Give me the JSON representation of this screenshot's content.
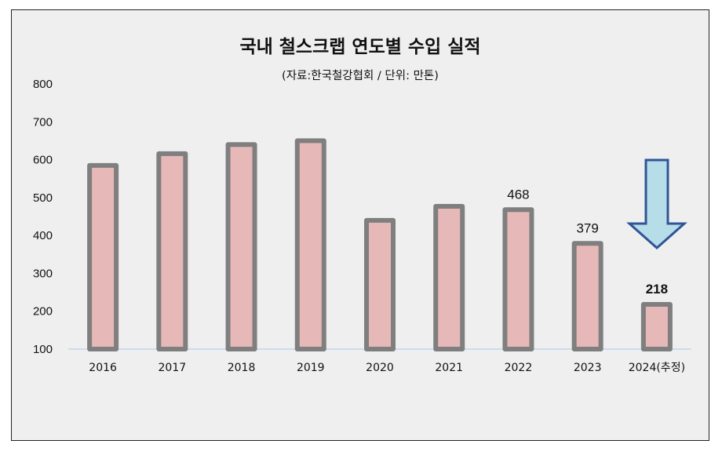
{
  "chart_data": {
    "type": "bar",
    "title": "국내 철스크랩 연도별 수입 실적",
    "subtitle": "(자료:한국철강협회 / 단위: 만톤)",
    "categories": [
      "2016",
      "2017",
      "2018",
      "2019",
      "2020",
      "2021",
      "2022",
      "2023",
      "2024(추정)"
    ],
    "values": [
      585,
      616,
      640,
      650,
      440,
      477,
      468,
      379,
      218
    ],
    "data_labels": [
      "",
      "",
      "",
      "",
      "",
      "",
      "468",
      "379",
      "218"
    ],
    "yticks": [
      "100",
      "200",
      "300",
      "400",
      "500",
      "600",
      "700",
      "800"
    ],
    "ylim": [
      100,
      800
    ],
    "grid": false,
    "legend": "none",
    "bar_fill": "#e6b8b7",
    "bar_border": "#7f7f7f",
    "arrow_fill": "#b7dde8",
    "arrow_border": "#2f5597",
    "annotation_icon": "down-arrow-icon"
  }
}
